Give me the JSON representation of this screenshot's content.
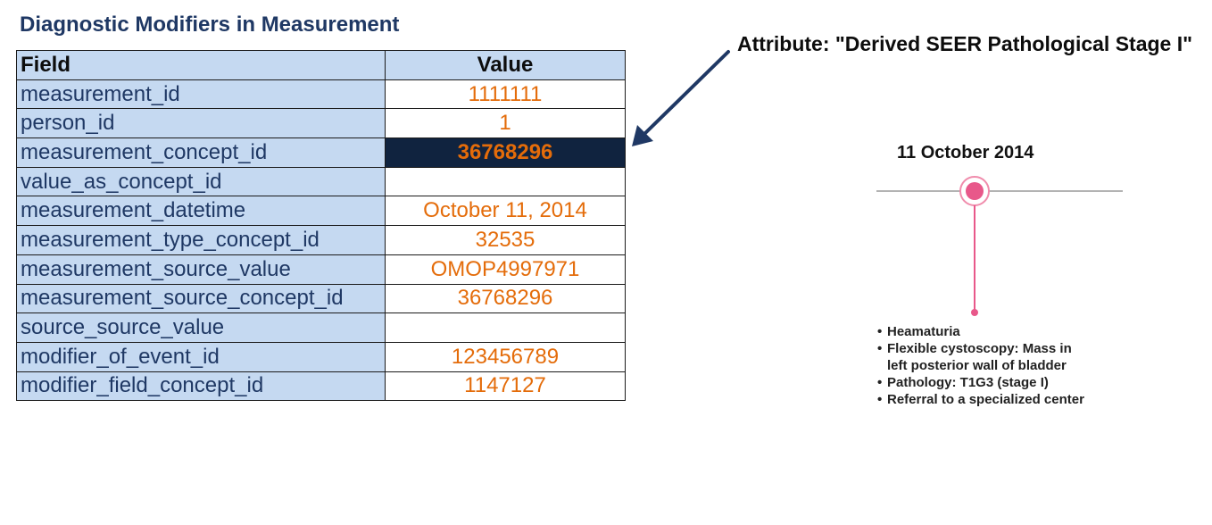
{
  "title": "Diagnostic Modifiers in Measurement",
  "table": {
    "headers": {
      "field": "Field",
      "value": "Value"
    },
    "rows": [
      {
        "field": "measurement_id",
        "value": "1111111"
      },
      {
        "field": "person_id",
        "value": "1"
      },
      {
        "field": "measurement_concept_id",
        "value": "36768296",
        "highlighted": true
      },
      {
        "field": "value_as_concept_id",
        "value": ""
      },
      {
        "field": "measurement_datetime",
        "value": "October 11, 2014"
      },
      {
        "field": "measurement_type_concept_id",
        "value": "32535"
      },
      {
        "field": "measurement_source_value",
        "value": "OMOP4997971"
      },
      {
        "field": "measurement_source_concept_id",
        "value": "36768296"
      },
      {
        "field": "source_source_value",
        "value": ""
      },
      {
        "field": "modifier_of_event_id",
        "value": "123456789"
      },
      {
        "field": "modifier_field_concept_id",
        "value": "1147127"
      }
    ]
  },
  "annotation": {
    "label": "Attribute: \"Derived SEER Pathological Stage I\"",
    "arrow_icon": "arrow-icon"
  },
  "timeline": {
    "date": "11 October 2014",
    "events": [
      "Heamaturia",
      "Flexible cystoscopy: Mass in left posterior wall of bladder",
      "Pathology: T1G3 (stage I)",
      "Referral to a specialized center"
    ],
    "marker_icon": "timeline-marker-icon"
  },
  "colors": {
    "title": "#1f3864",
    "header_fill": "#c5d9f1",
    "value_text": "#e46c0a",
    "highlight_fill": "#10233f",
    "arrow": "#1f3864",
    "marker": "#e8588a"
  }
}
